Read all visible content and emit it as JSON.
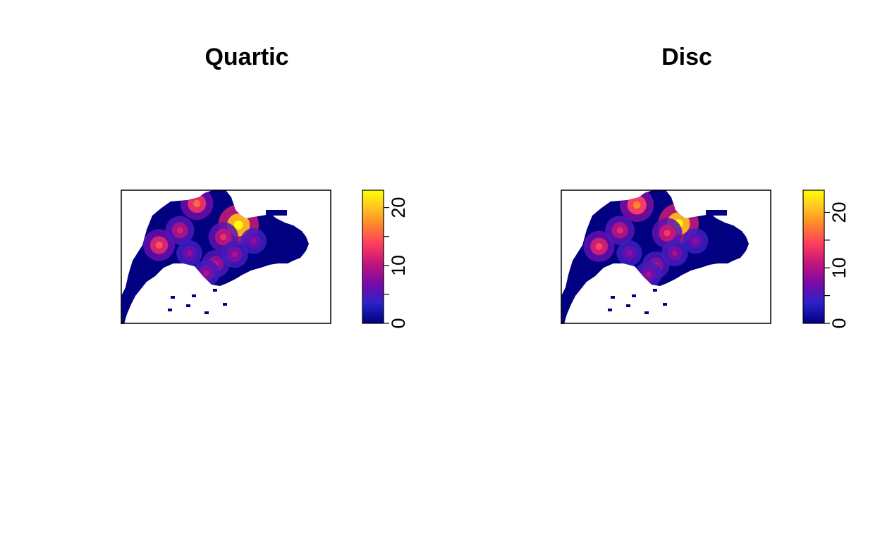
{
  "chart_data": [
    {
      "type": "heatmap",
      "title": "Quartic",
      "xlabel": "",
      "ylabel": "",
      "legend": "right",
      "color_scale": {
        "min": 0,
        "max": 23,
        "ticks": [
          0,
          10,
          20
        ],
        "stops": [
          "#000080",
          "#3a1fbf",
          "#6a0dad",
          "#c2157a",
          "#ff4060",
          "#ff8c28",
          "#ffd21e",
          "#ffff00"
        ]
      },
      "hotspots": [
        {
          "x": 0.62,
          "y": 0.26,
          "value": 23
        },
        {
          "x": 0.4,
          "y": 0.1,
          "value": 15
        },
        {
          "x": 0.2,
          "y": 0.41,
          "value": 14
        },
        {
          "x": 0.31,
          "y": 0.3,
          "value": 11
        },
        {
          "x": 0.54,
          "y": 0.35,
          "value": 12
        },
        {
          "x": 0.5,
          "y": 0.55,
          "value": 10
        },
        {
          "x": 0.45,
          "y": 0.62,
          "value": 9
        },
        {
          "x": 0.6,
          "y": 0.48,
          "value": 9
        },
        {
          "x": 0.7,
          "y": 0.38,
          "value": 8
        },
        {
          "x": 0.36,
          "y": 0.47,
          "value": 8
        }
      ]
    },
    {
      "type": "heatmap",
      "title": "Disc",
      "xlabel": "",
      "ylabel": "",
      "legend": "right",
      "color_scale": {
        "min": 0,
        "max": 24,
        "ticks": [
          0,
          10,
          20
        ],
        "stops": [
          "#000080",
          "#3a1fbf",
          "#6a0dad",
          "#c2157a",
          "#ff4060",
          "#ff8c28",
          "#ffd21e",
          "#ffff00"
        ]
      },
      "hotspots": [
        {
          "x": 0.62,
          "y": 0.25,
          "value": 24
        },
        {
          "x": 0.4,
          "y": 0.11,
          "value": 17
        },
        {
          "x": 0.2,
          "y": 0.42,
          "value": 14
        },
        {
          "x": 0.31,
          "y": 0.3,
          "value": 12
        },
        {
          "x": 0.56,
          "y": 0.32,
          "value": 13
        },
        {
          "x": 0.5,
          "y": 0.56,
          "value": 10
        },
        {
          "x": 0.46,
          "y": 0.63,
          "value": 9
        },
        {
          "x": 0.6,
          "y": 0.47,
          "value": 9
        },
        {
          "x": 0.71,
          "y": 0.38,
          "value": 8
        },
        {
          "x": 0.36,
          "y": 0.47,
          "value": 8
        }
      ]
    }
  ]
}
